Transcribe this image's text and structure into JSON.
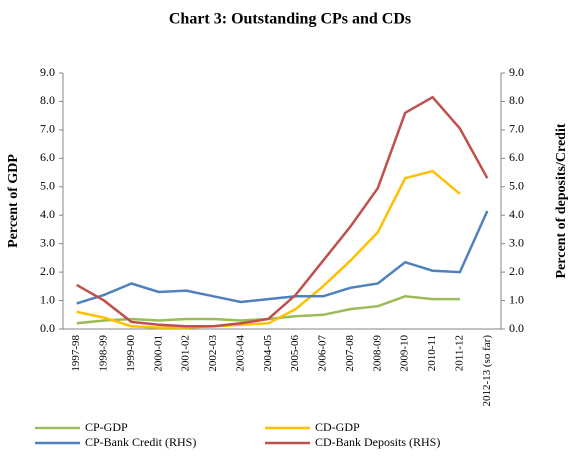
{
  "chart_data": {
    "type": "line",
    "title": "Chart 3: Outstanding CPs and CDs",
    "y_label": "Percent  of GDP",
    "y2_label": "Percent  of deposits/Credit",
    "categories": [
      "1997-98",
      "1998-99",
      "1999-00",
      "2000-01",
      "2001-02",
      "2002-03",
      "2003-04",
      "2004-05",
      "2005-06",
      "2006-07",
      "2007-08",
      "2008-09",
      "2009-10",
      "2010-11",
      "2011-12",
      "2012-13 (so far)"
    ],
    "series": [
      {
        "name": "CP-GDP",
        "color": "#9bbb59",
        "values": [
          0.2,
          0.3,
          0.35,
          0.3,
          0.35,
          0.35,
          0.3,
          0.35,
          0.45,
          0.5,
          0.7,
          0.8,
          1.15,
          1.05,
          1.05,
          null
        ]
      },
      {
        "name": "CD-GDP",
        "color": "#ffc000",
        "values": [
          0.6,
          0.4,
          0.1,
          0.05,
          0.05,
          0.1,
          0.15,
          0.2,
          0.7,
          1.5,
          2.4,
          3.4,
          5.3,
          5.55,
          4.75,
          null
        ]
      },
      {
        "name": "CP-Bank Credit (RHS)",
        "color": "#4f81bd",
        "axis": "y2",
        "values": [
          0.9,
          1.2,
          1.6,
          1.3,
          1.35,
          1.15,
          0.95,
          1.05,
          1.15,
          1.15,
          1.45,
          1.6,
          2.35,
          2.05,
          2.0,
          4.15
        ]
      },
      {
        "name": "CD-Bank Deposits (RHS)",
        "color": "#c0504d",
        "axis": "y2",
        "values": [
          1.55,
          1.0,
          0.25,
          0.15,
          0.1,
          0.1,
          0.2,
          0.35,
          1.2,
          2.4,
          3.6,
          4.95,
          7.6,
          8.15,
          7.05,
          5.3
        ]
      }
    ],
    "ylim": [
      0,
      9
    ],
    "yticks": [
      {
        "value": 0,
        "label": "0.0"
      },
      {
        "value": 1,
        "label": "1.0"
      },
      {
        "value": 2,
        "label": "2.0"
      },
      {
        "value": 3,
        "label": "3.0"
      },
      {
        "value": 4,
        "label": "4.0"
      },
      {
        "value": 5,
        "label": "5.0"
      },
      {
        "value": 6,
        "label": "6.0"
      },
      {
        "value": 7,
        "label": "7.0"
      },
      {
        "value": 8,
        "label": "8.0"
      },
      {
        "value": 9,
        "label": "9.0"
      }
    ],
    "y2lim": [
      0,
      9
    ],
    "y2ticks": [
      {
        "value": 0,
        "label": "0.0"
      },
      {
        "value": 1,
        "label": "1.0"
      },
      {
        "value": 2,
        "label": "2.0"
      },
      {
        "value": 3,
        "label": "3.0"
      },
      {
        "value": 4,
        "label": "4.0"
      },
      {
        "value": 5,
        "label": "5.0"
      },
      {
        "value": 6,
        "label": "6.0"
      },
      {
        "value": 7,
        "label": "7.0"
      },
      {
        "value": 8,
        "label": "8.0"
      },
      {
        "value": 9,
        "label": "9.0"
      }
    ],
    "grid": false
  }
}
